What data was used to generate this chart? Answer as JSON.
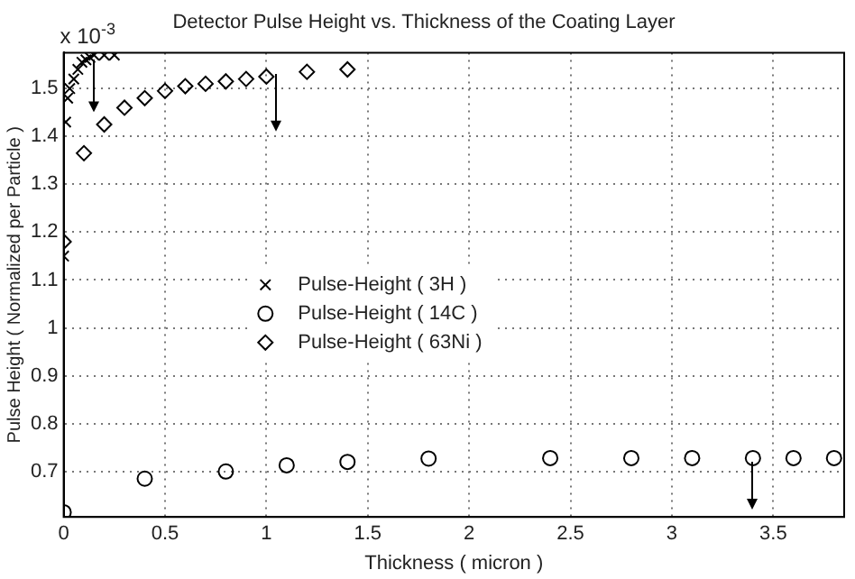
{
  "chart_data": {
    "type": "scatter",
    "title": "Detector Pulse Height vs. Thickness of the Coating Layer",
    "xlabel": "Thickness ( micron )",
    "ylabel": "Pulse Height ( Normalized per Particle )",
    "annotations": [
      "x 10$^{-3}$"
    ],
    "series": [
      {
        "name": "Pulse-Height ( 3H )",
        "color": "#000000",
        "marker": "cross",
        "x": [
          0,
          0.01,
          0.02,
          0.03,
          0.05,
          0.07,
          0.09,
          0.11,
          0.13,
          0.15,
          0.2,
          0.25
        ],
        "values": [
          1.15,
          1.43,
          1.48,
          1.5,
          1.52,
          1.54,
          1.555,
          1.56,
          1.565,
          1.57,
          1.57,
          1.57
        ]
      },
      {
        "name": "Pulse-Height ( 14C )",
        "color": "#000000",
        "marker": "circle",
        "x": [
          0,
          0.4,
          0.8,
          1.1,
          1.4,
          1.8,
          2.4,
          2.8,
          3.1,
          3.4,
          3.6,
          3.8
        ],
        "values": [
          0.615,
          0.685,
          0.7,
          0.713,
          0.72,
          0.727,
          0.728,
          0.728,
          0.728,
          0.728,
          0.728,
          0.728
        ]
      },
      {
        "name": "Pulse-Height ( 63Ni )",
        "color": "#000000",
        "marker": "diamond",
        "x": [
          0,
          0.1,
          0.2,
          0.3,
          0.4,
          0.5,
          0.6,
          0.7,
          0.8,
          0.9,
          1.0,
          1.2,
          1.4
        ],
        "values": [
          1.18,
          1.365,
          1.425,
          1.46,
          1.48,
          1.495,
          1.505,
          1.51,
          1.515,
          1.52,
          1.525,
          1.535,
          1.54
        ]
      }
    ],
    "xlim": [
      0,
      3.85
    ],
    "xticks": [
      0,
      0.5,
      1,
      1.5,
      2,
      2.5,
      3,
      3.5
    ],
    "ylim": [
      0.605,
      1.575
    ],
    "yticks": [
      0.7,
      0.8,
      0.9,
      1,
      1.1,
      1.2,
      1.3,
      1.4,
      1.5
    ],
    "grid": true,
    "legend": "center"
  }
}
